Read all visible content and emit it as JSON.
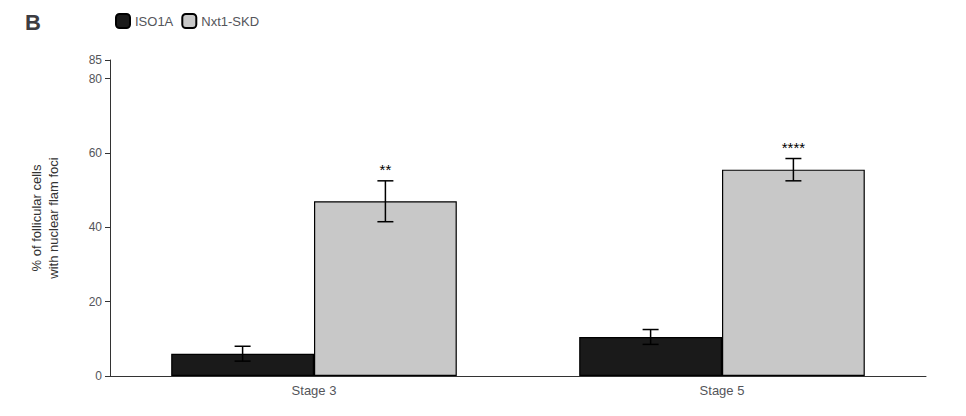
{
  "chart_data": {
    "type": "bar",
    "title": "B",
    "categories": [
      "Stage 3",
      "Stage 5"
    ],
    "series": [
      {
        "name": "ISO1A",
        "color": "#1a1a1a",
        "values": [
          6.0,
          10.5
        ],
        "errors": [
          2.0,
          2.0
        ]
      },
      {
        "name": "Nxt1-SKD",
        "color": "#c8c8c8",
        "values": [
          47.0,
          55.5
        ],
        "errors": [
          5.5,
          3.0
        ]
      }
    ],
    "ylabel": "% of follicular cells\nwith nuclear flam foci",
    "ylim": [
      0,
      85
    ],
    "yticks": [
      0,
      20,
      40,
      60,
      80
    ],
    "annotations": [
      {
        "text": "**",
        "category": "Stage 3",
        "series": "Nxt1-SKD"
      },
      {
        "text": "****",
        "category": "Stage 5",
        "series": "Nxt1-SKD"
      }
    ],
    "legend": "upper left",
    "grid": false
  }
}
